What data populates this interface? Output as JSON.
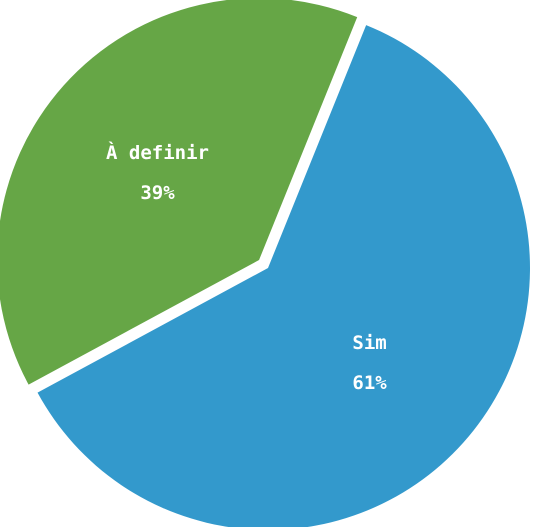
{
  "chart_data": {
    "type": "pie",
    "title": "",
    "start_angle_deg": 22,
    "series": [
      {
        "label": "Sim",
        "value": 61,
        "value_label": "61%",
        "color": "#3399cc"
      },
      {
        "label": "À definir",
        "value": 39,
        "value_label": "39%",
        "color": "#66a646"
      }
    ]
  }
}
